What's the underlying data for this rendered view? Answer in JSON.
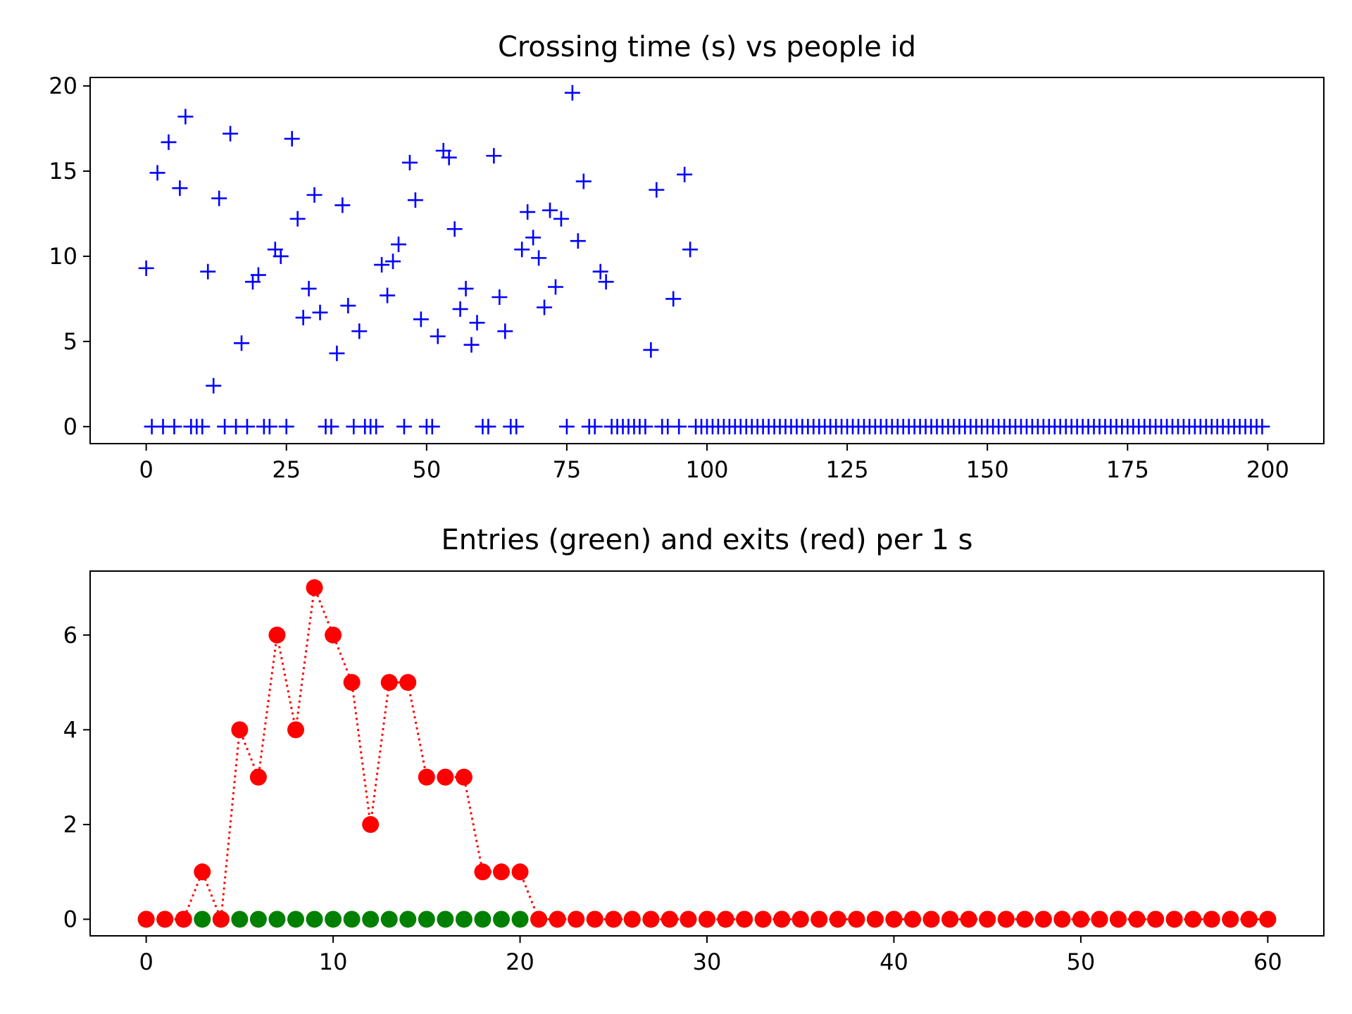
{
  "chart_data": [
    {
      "type": "scatter",
      "title": "Crossing time (s) vs people id",
      "xlabel": "",
      "ylabel": "",
      "xlim": [
        -10,
        210
      ],
      "ylim": [
        -1,
        20.5
      ],
      "grid": false,
      "marker": "+",
      "color": "#0000ff",
      "x_ticks": [
        0,
        25,
        50,
        75,
        100,
        125,
        150,
        175,
        200
      ],
      "y_ticks": [
        0,
        5,
        10,
        15,
        20
      ],
      "points": [
        [
          0,
          9.3
        ],
        [
          1,
          0
        ],
        [
          2,
          14.9
        ],
        [
          3,
          0
        ],
        [
          4,
          16.7
        ],
        [
          5,
          0
        ],
        [
          6,
          14.0
        ],
        [
          7,
          18.2
        ],
        [
          8,
          0
        ],
        [
          9,
          0
        ],
        [
          10,
          0
        ],
        [
          11,
          9.1
        ],
        [
          12,
          2.4
        ],
        [
          13,
          13.4
        ],
        [
          14,
          0
        ],
        [
          15,
          17.2
        ],
        [
          16,
          0
        ],
        [
          17,
          4.9
        ],
        [
          18,
          0
        ],
        [
          19,
          8.5
        ],
        [
          20,
          8.9
        ],
        [
          21,
          0
        ],
        [
          22,
          0
        ],
        [
          23,
          10.4
        ],
        [
          24,
          10.0
        ],
        [
          25,
          0
        ],
        [
          26,
          16.9
        ],
        [
          27,
          12.2
        ],
        [
          28,
          6.4
        ],
        [
          29,
          8.1
        ],
        [
          30,
          13.6
        ],
        [
          31,
          6.7
        ],
        [
          32,
          0
        ],
        [
          33,
          0
        ],
        [
          34,
          4.3
        ],
        [
          35,
          13.0
        ],
        [
          36,
          7.1
        ],
        [
          37,
          0
        ],
        [
          38,
          5.6
        ],
        [
          39,
          0
        ],
        [
          40,
          0
        ],
        [
          41,
          0
        ],
        [
          42,
          9.5
        ],
        [
          43,
          7.7
        ],
        [
          44,
          9.7
        ],
        [
          45,
          10.7
        ],
        [
          46,
          0
        ],
        [
          47,
          15.5
        ],
        [
          48,
          13.3
        ],
        [
          49,
          6.3
        ],
        [
          50,
          0
        ],
        [
          51,
          0
        ],
        [
          52,
          5.3
        ],
        [
          53,
          16.2
        ],
        [
          54,
          15.8
        ],
        [
          55,
          11.6
        ],
        [
          56,
          6.9
        ],
        [
          57,
          8.1
        ],
        [
          58,
          4.8
        ],
        [
          59,
          6.1
        ],
        [
          60,
          0
        ],
        [
          61,
          0
        ],
        [
          62,
          15.9
        ],
        [
          63,
          7.6
        ],
        [
          64,
          5.6
        ],
        [
          65,
          0
        ],
        [
          66,
          0
        ],
        [
          67,
          10.4
        ],
        [
          68,
          12.6
        ],
        [
          69,
          11.1
        ],
        [
          70,
          9.9
        ],
        [
          71,
          7.0
        ],
        [
          72,
          12.7
        ],
        [
          73,
          8.2
        ],
        [
          74,
          12.2
        ],
        [
          75,
          0
        ],
        [
          76,
          19.6
        ],
        [
          77,
          10.9
        ],
        [
          78,
          14.4
        ],
        [
          79,
          0
        ],
        [
          80,
          0
        ],
        [
          81,
          9.1
        ],
        [
          82,
          8.5
        ],
        [
          83,
          0
        ],
        [
          84,
          0
        ],
        [
          85,
          0
        ],
        [
          86,
          0
        ],
        [
          87,
          0
        ],
        [
          88,
          0
        ],
        [
          89,
          0
        ],
        [
          90,
          4.5
        ],
        [
          91,
          13.9
        ],
        [
          92,
          0
        ],
        [
          93,
          0
        ],
        [
          94,
          7.5
        ],
        [
          95,
          0
        ],
        [
          96,
          14.8
        ],
        [
          97,
          10.4
        ],
        [
          98,
          0
        ],
        [
          99,
          0
        ],
        [
          100,
          0
        ],
        [
          101,
          0
        ],
        [
          102,
          0
        ],
        [
          103,
          0
        ],
        [
          104,
          0
        ],
        [
          105,
          0
        ],
        [
          106,
          0
        ],
        [
          107,
          0
        ],
        [
          108,
          0
        ],
        [
          109,
          0
        ],
        [
          110,
          0
        ],
        [
          111,
          0
        ],
        [
          112,
          0
        ],
        [
          113,
          0
        ],
        [
          114,
          0
        ],
        [
          115,
          0
        ],
        [
          116,
          0
        ],
        [
          117,
          0
        ],
        [
          118,
          0
        ],
        [
          119,
          0
        ],
        [
          120,
          0
        ],
        [
          121,
          0
        ],
        [
          122,
          0
        ],
        [
          123,
          0
        ],
        [
          124,
          0
        ],
        [
          125,
          0
        ],
        [
          126,
          0
        ],
        [
          127,
          0
        ],
        [
          128,
          0
        ],
        [
          129,
          0
        ],
        [
          130,
          0
        ],
        [
          131,
          0
        ],
        [
          132,
          0
        ],
        [
          133,
          0
        ],
        [
          134,
          0
        ],
        [
          135,
          0
        ],
        [
          136,
          0
        ],
        [
          137,
          0
        ],
        [
          138,
          0
        ],
        [
          139,
          0
        ],
        [
          140,
          0
        ],
        [
          141,
          0
        ],
        [
          142,
          0
        ],
        [
          143,
          0
        ],
        [
          144,
          0
        ],
        [
          145,
          0
        ],
        [
          146,
          0
        ],
        [
          147,
          0
        ],
        [
          148,
          0
        ],
        [
          149,
          0
        ],
        [
          150,
          0
        ],
        [
          151,
          0
        ],
        [
          152,
          0
        ],
        [
          153,
          0
        ],
        [
          154,
          0
        ],
        [
          155,
          0
        ],
        [
          156,
          0
        ],
        [
          157,
          0
        ],
        [
          158,
          0
        ],
        [
          159,
          0
        ],
        [
          160,
          0
        ],
        [
          161,
          0
        ],
        [
          162,
          0
        ],
        [
          163,
          0
        ],
        [
          164,
          0
        ],
        [
          165,
          0
        ],
        [
          166,
          0
        ],
        [
          167,
          0
        ],
        [
          168,
          0
        ],
        [
          169,
          0
        ],
        [
          170,
          0
        ],
        [
          171,
          0
        ],
        [
          172,
          0
        ],
        [
          173,
          0
        ],
        [
          174,
          0
        ],
        [
          175,
          0
        ],
        [
          176,
          0
        ],
        [
          177,
          0
        ],
        [
          178,
          0
        ],
        [
          179,
          0
        ],
        [
          180,
          0
        ],
        [
          181,
          0
        ],
        [
          182,
          0
        ],
        [
          183,
          0
        ],
        [
          184,
          0
        ],
        [
          185,
          0
        ],
        [
          186,
          0
        ],
        [
          187,
          0
        ],
        [
          188,
          0
        ],
        [
          189,
          0
        ],
        [
          190,
          0
        ],
        [
          191,
          0
        ],
        [
          192,
          0
        ],
        [
          193,
          0
        ],
        [
          194,
          0
        ],
        [
          195,
          0
        ],
        [
          196,
          0
        ],
        [
          197,
          0
        ],
        [
          198,
          0
        ],
        [
          199,
          0
        ]
      ]
    },
    {
      "type": "line",
      "title": "Entries (green) and exits (red) per 1 s",
      "xlabel": "",
      "ylabel": "",
      "xlim": [
        -3,
        63
      ],
      "ylim": [
        -0.35,
        7.35
      ],
      "grid": false,
      "x_ticks": [
        0,
        10,
        20,
        30,
        40,
        50,
        60
      ],
      "y_ticks": [
        0,
        2,
        4,
        6
      ],
      "x": [
        0,
        1,
        2,
        3,
        4,
        5,
        6,
        7,
        8,
        9,
        10,
        11,
        12,
        13,
        14,
        15,
        16,
        17,
        18,
        19,
        20,
        21,
        22,
        23,
        24,
        25,
        26,
        27,
        28,
        29,
        30,
        31,
        32,
        33,
        34,
        35,
        36,
        37,
        38,
        39,
        40,
        41,
        42,
        43,
        44,
        45,
        46,
        47,
        48,
        49,
        50,
        51,
        52,
        53,
        54,
        55,
        56,
        57,
        58,
        59,
        60
      ],
      "series": [
        {
          "color": "#008000",
          "line_style": "none",
          "marker": "o",
          "values": [
            0,
            0,
            0,
            0,
            0,
            0,
            0,
            0,
            0,
            0,
            0,
            0,
            0,
            0,
            0,
            0,
            0,
            0,
            0,
            0,
            0,
            0,
            0,
            0,
            0,
            0,
            0,
            0,
            0,
            0,
            0,
            0,
            0,
            0,
            0,
            0,
            0,
            0,
            0,
            0,
            0,
            0,
            0,
            0,
            0,
            0,
            0,
            0,
            0,
            0,
            0,
            0,
            0,
            0,
            0,
            0,
            0,
            0,
            0,
            0,
            0
          ]
        },
        {
          "color": "#ff0000",
          "line_style": "dotted",
          "marker": "o",
          "values": [
            0,
            0,
            0,
            1,
            0,
            4,
            3,
            6,
            4,
            7,
            6,
            5,
            2,
            5,
            5,
            3,
            3,
            3,
            1,
            1,
            1,
            0,
            0,
            0,
            0,
            0,
            0,
            0,
            0,
            0,
            0,
            0,
            0,
            0,
            0,
            0,
            0,
            0,
            0,
            0,
            0,
            0,
            0,
            0,
            0,
            0,
            0,
            0,
            0,
            0,
            0,
            0,
            0,
            0,
            0,
            0,
            0,
            0,
            0,
            0,
            0
          ],
          "red_marker_indices": [
            0,
            1,
            2,
            3,
            4,
            5,
            6,
            7,
            8,
            9,
            10,
            11,
            12,
            13,
            14,
            15,
            16,
            17,
            18,
            19,
            20,
            21,
            22,
            23,
            24,
            25,
            26,
            27,
            28,
            29,
            30,
            31,
            32,
            33,
            34,
            35,
            36,
            37,
            38,
            39,
            40,
            41,
            42,
            43,
            44,
            45,
            46,
            47,
            48,
            49,
            50,
            51,
            52,
            53,
            54,
            55,
            56,
            57,
            58,
            59,
            60
          ],
          "hidden_zero_marker_indices": [
            3,
            5,
            6,
            7,
            8,
            9,
            10,
            11,
            12,
            13,
            14,
            15,
            16,
            17,
            18,
            19,
            20
          ]
        }
      ]
    }
  ]
}
